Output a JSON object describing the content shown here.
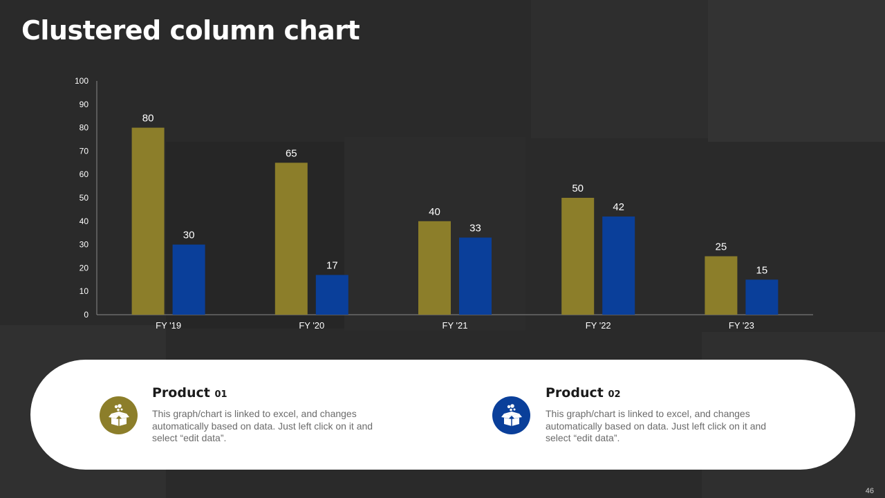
{
  "slide": {
    "title": "Clustered column chart",
    "page_number": "46"
  },
  "colors": {
    "background": "#2a2a2a",
    "product_01": "#8c7e2a",
    "product_02": "#0a3f9a",
    "axis_text": "#ffffff",
    "panel": "#ffffff"
  },
  "chart_data": {
    "type": "bar",
    "categories": [
      "FY '19",
      "FY '20",
      "FY '21",
      "FY '22",
      "FY '23"
    ],
    "series": [
      {
        "values": [
          80,
          65,
          40,
          50,
          25
        ],
        "color": "#8c7e2a"
      },
      {
        "values": [
          30,
          17,
          33,
          42,
          15
        ],
        "color": "#0a3f9a"
      }
    ],
    "ylim": [
      0,
      100
    ],
    "yticks": [
      0,
      10,
      20,
      30,
      40,
      50,
      60,
      70,
      80,
      90,
      100
    ],
    "data_labels": true,
    "grid": false
  },
  "legend": [
    {
      "title": "Product",
      "number": "01",
      "text": "This graph/chart is linked to excel, and changes automatically based on data. Just left click on it and select “edit data”.",
      "icon": "gift-box-icon",
      "color": "#8c7e2a"
    },
    {
      "title": "Product",
      "number": "02",
      "text": "This graph/chart is linked to excel, and changes automatically based on data. Just left click on it and select “edit data”.",
      "icon": "gift-box-icon",
      "color": "#0a3f9a"
    }
  ]
}
